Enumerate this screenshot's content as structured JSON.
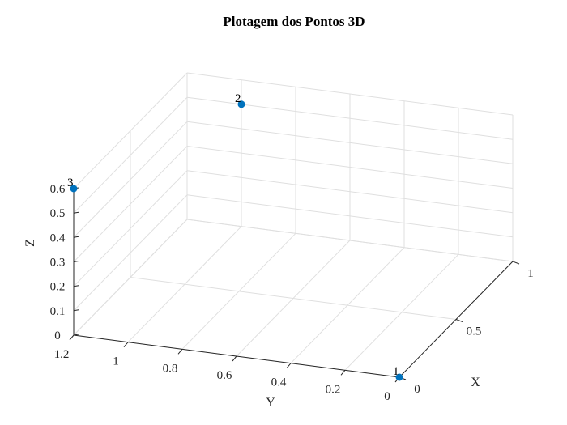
{
  "chart_data": {
    "type": "scatter3d",
    "title": "Plotagem dos Pontos 3D",
    "xlabel": "X",
    "ylabel": "Y",
    "zlabel": "Z",
    "xlim": [
      0,
      1
    ],
    "ylim": [
      0,
      1.2
    ],
    "zlim": [
      0,
      0.6
    ],
    "xticks": [
      "0",
      "0.5",
      "1"
    ],
    "yticks": [
      "0",
      "0.2",
      "0.4",
      "0.6",
      "0.8",
      "1",
      "1.2"
    ],
    "zticks": [
      "0",
      "0.1",
      "0.2",
      "0.3",
      "0.4",
      "0.5",
      "0.6"
    ],
    "grid": true,
    "marker_color": "#0072bd",
    "points": [
      {
        "label": "1",
        "x": 0,
        "y": 0,
        "z": 0
      },
      {
        "label": "2",
        "x": 1,
        "y": 1,
        "z": 0.5
      },
      {
        "label": "3",
        "x": 0,
        "y": 1.2,
        "z": 0.6
      }
    ]
  }
}
